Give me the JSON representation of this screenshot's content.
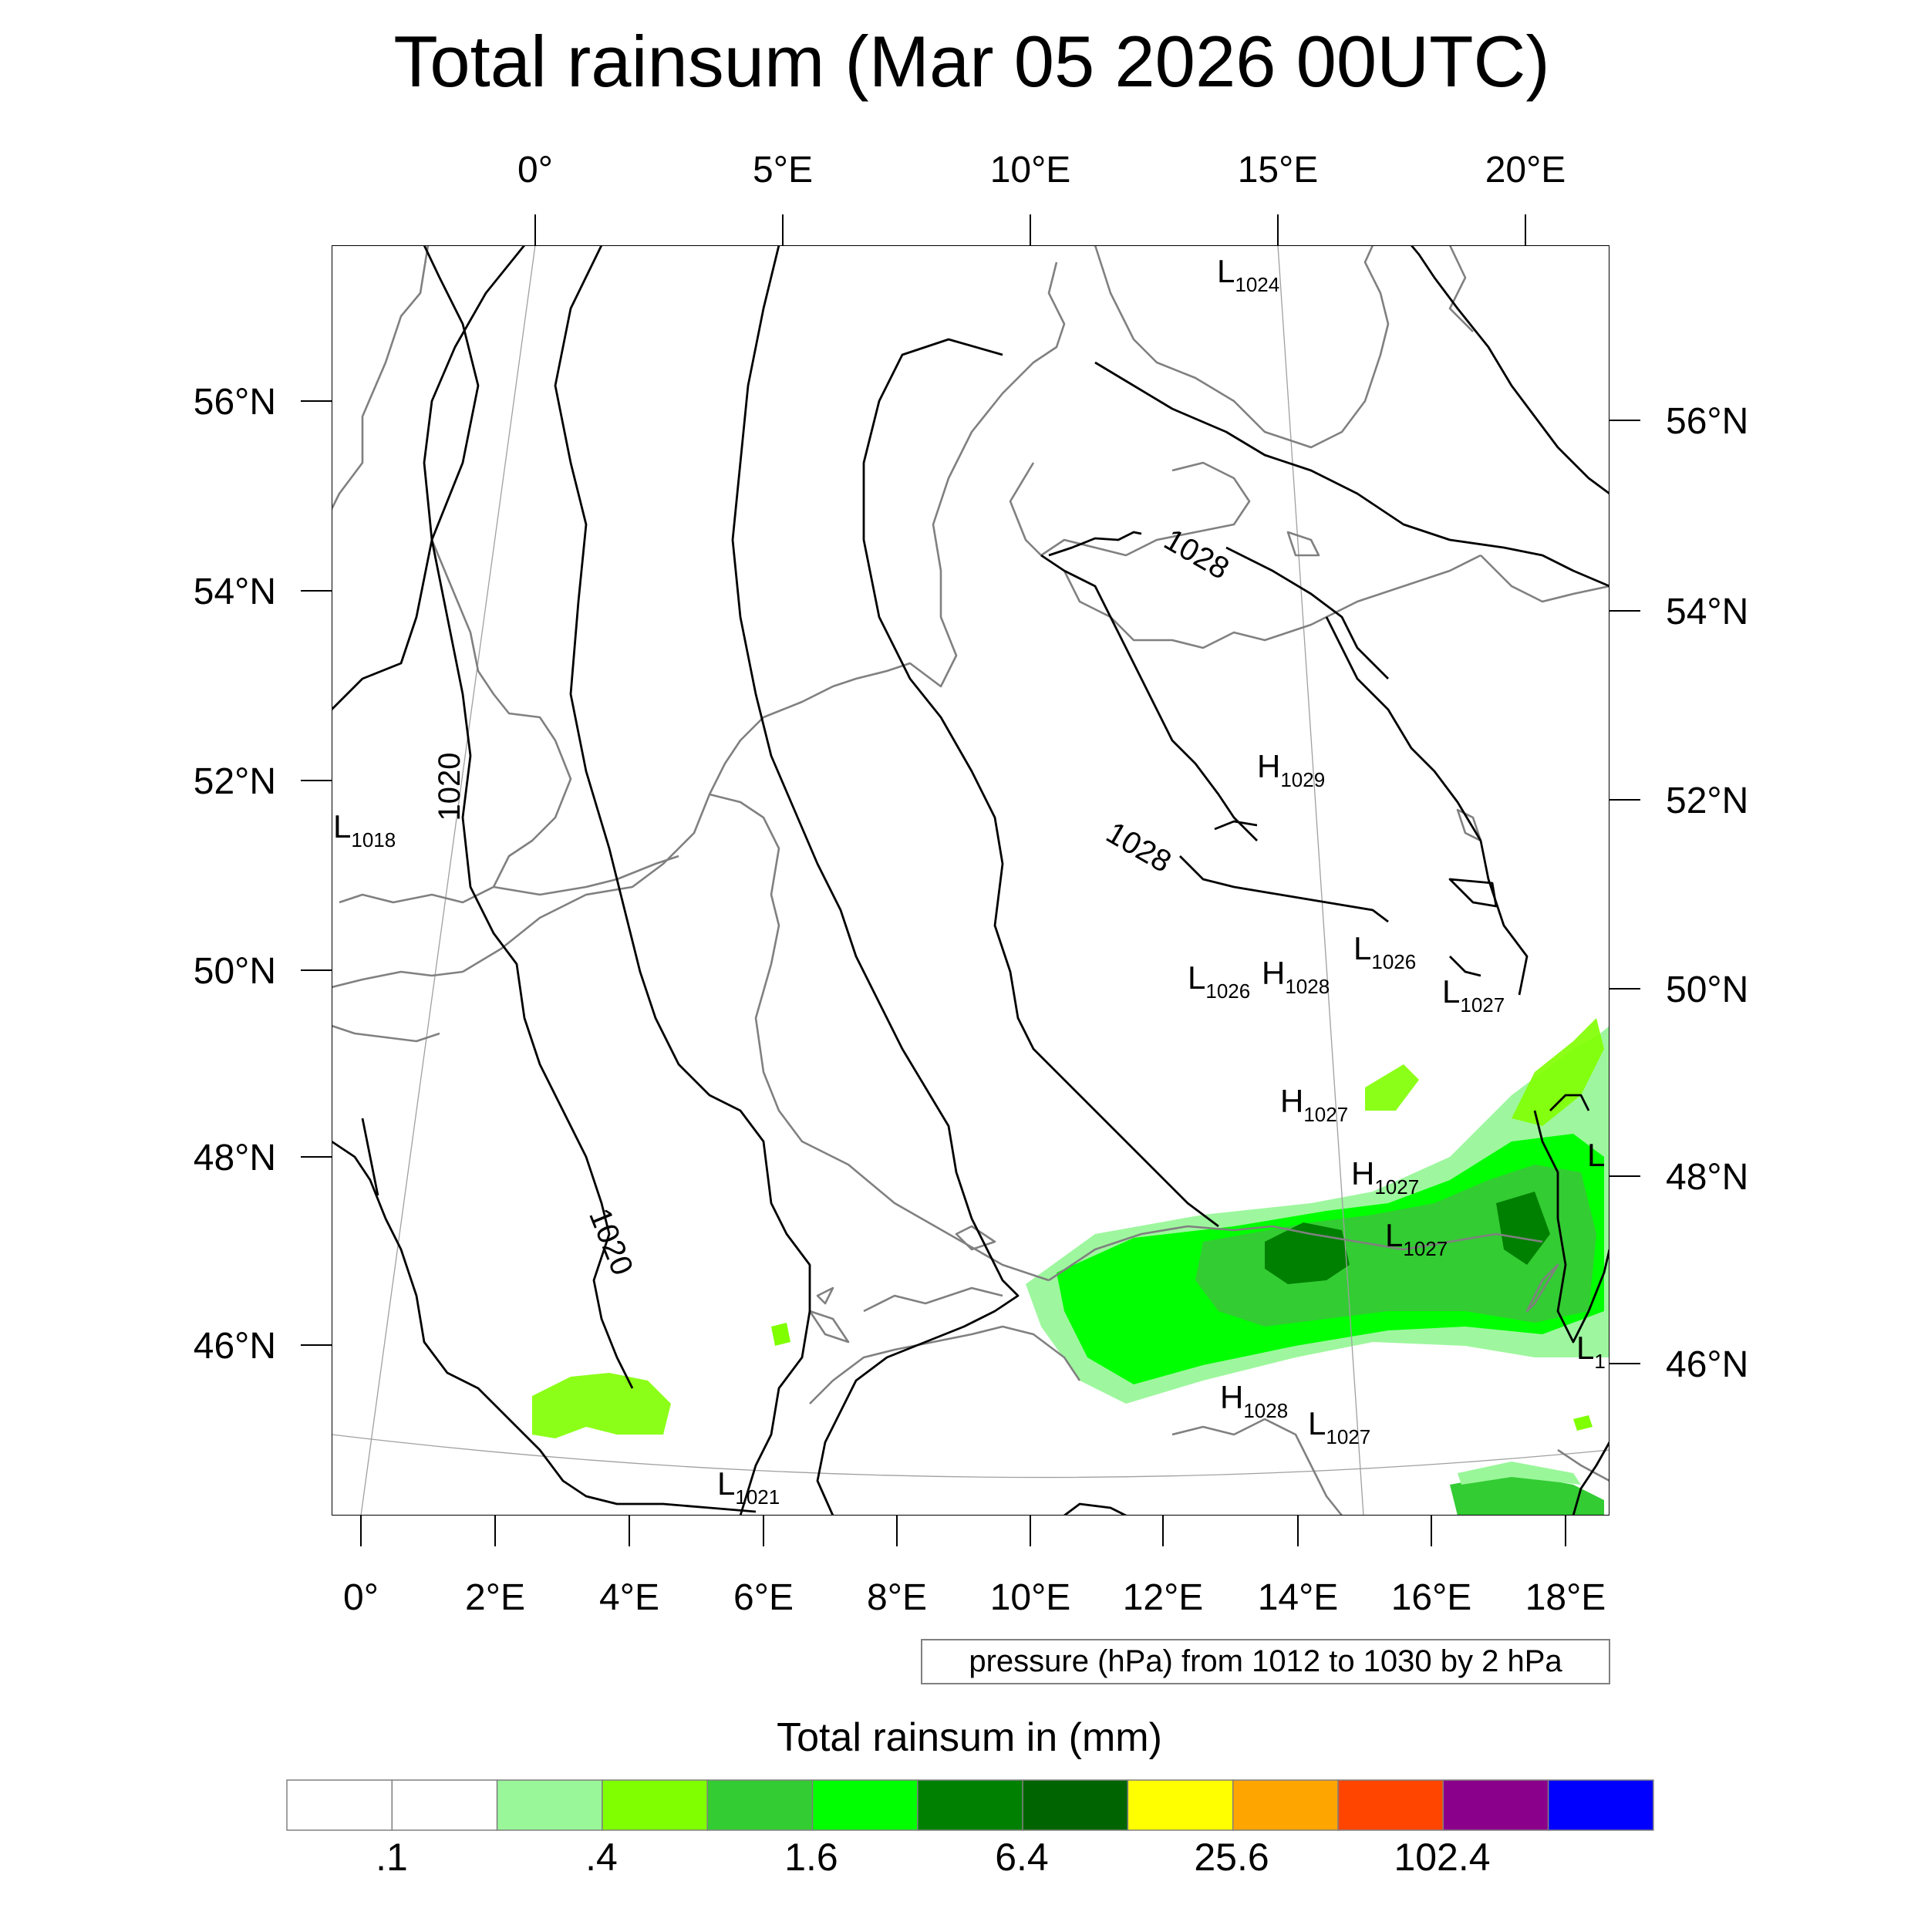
{
  "title": "Total rainsum (Mar 05 2026 00UTC)",
  "top_lon_labels": [
    "0°",
    "5°E",
    "10°E",
    "15°E",
    "20°E"
  ],
  "bottom_lon_labels": [
    "0°",
    "2°E",
    "4°E",
    "6°E",
    "8°E",
    "10°E",
    "12°E",
    "14°E",
    "16°E",
    "18°E"
  ],
  "left_lat_labels": [
    "56°N",
    "54°N",
    "52°N",
    "50°N",
    "48°N",
    "46°N"
  ],
  "right_lat_labels": [
    "56°N",
    "54°N",
    "52°N",
    "50°N",
    "48°N",
    "46°N"
  ],
  "contour_labels": [
    "1020",
    "1020",
    "1028",
    "1028"
  ],
  "pressure_centers": [
    {
      "letter": "L",
      "value": "1024"
    },
    {
      "letter": "L",
      "value": "1018"
    },
    {
      "letter": "H",
      "value": "1029"
    },
    {
      "letter": "L",
      "value": "1026"
    },
    {
      "letter": "L",
      "value": "1026"
    },
    {
      "letter": "H",
      "value": "1028"
    },
    {
      "letter": "L",
      "value": "1027"
    },
    {
      "letter": "H",
      "value": "1027"
    },
    {
      "letter": "H",
      "value": "1027"
    },
    {
      "letter": "L",
      "value": "1027"
    },
    {
      "letter": "H",
      "value": "1028"
    },
    {
      "letter": "L",
      "value": "1027"
    },
    {
      "letter": "L",
      "value": "1021"
    },
    {
      "letter": "L",
      "value": ""
    },
    {
      "letter": "L",
      "value": "1"
    }
  ],
  "info_box": "pressure (hPa) from 1012 to 1030 by 2 hPa",
  "colorbar": {
    "title": "Total rainsum in (mm)",
    "colors": [
      "#ffffff",
      "#ffffff",
      "#99f799",
      "#80ff00",
      "#33cc33",
      "#00ff00",
      "#008000",
      "#006400",
      "#ffff00",
      "#ffa500",
      "#ff4500",
      "#8b008b",
      "#0000ff"
    ],
    "tick_labels": [
      ".1",
      ".4",
      "1.6",
      "6.4",
      "25.6",
      "102.4"
    ]
  },
  "colors": {
    "isobar": "#000000",
    "coastline": "#808080",
    "light_rain": "#99f799",
    "moderate_rain": "#33cc33",
    "bright_rain": "#00ff00",
    "heavy_rain": "#008000"
  }
}
